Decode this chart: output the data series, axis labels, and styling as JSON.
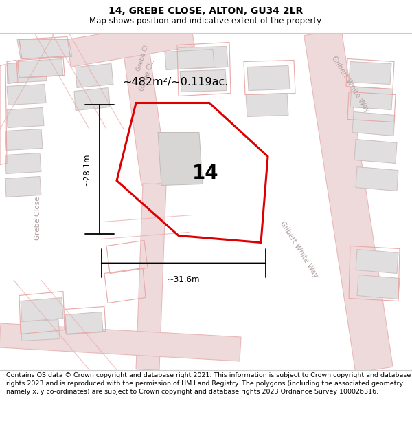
{
  "title": "14, GREBE CLOSE, ALTON, GU34 2LR",
  "subtitle": "Map shows position and indicative extent of the property.",
  "footer": "Contains OS data © Crown copyright and database right 2021. This information is subject to Crown copyright and database rights 2023 and is reproduced with the permission of HM Land Registry. The polygons (including the associated geometry, namely x, y co-ordinates) are subject to Crown copyright and database rights 2023 Ordnance Survey 100026316.",
  "area_label": "~482m²/~0.119ac.",
  "plot_number": "14",
  "dim_width": "~31.6m",
  "dim_height": "~28.1m",
  "map_bg": "#f7f6f4",
  "road_line_color": "#e8b8b8",
  "road_fill_color": "#eedada",
  "building_fill": "#e0dede",
  "building_edge": "#ccbfbf",
  "pink_outline_color": "#e8a8a8",
  "label_color": "#b0a0a0",
  "red_color": "#dd0000",
  "title_fontsize": 10,
  "subtitle_fontsize": 8.5,
  "footer_fontsize": 6.8
}
